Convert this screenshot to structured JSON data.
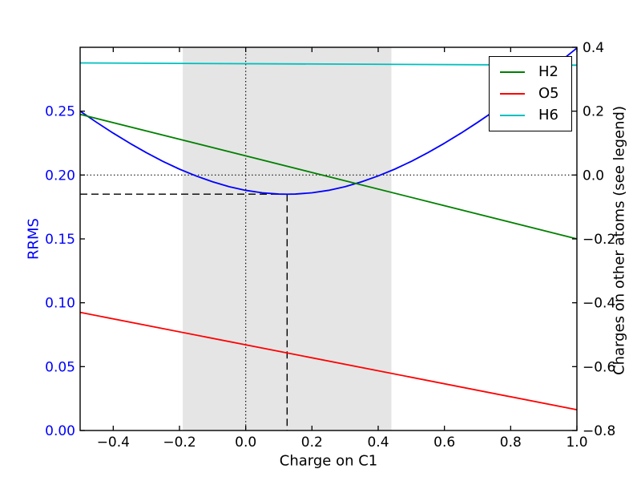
{
  "figure": {
    "background": "#ffffff",
    "plot_border_color": "#000000"
  },
  "chart_data": {
    "type": "line",
    "title": "",
    "xlabel": "Charge on C1",
    "ylabel_left": "RRMS",
    "ylabel_right": "Charges on other atoms (see legend)",
    "xlim": [
      -0.5,
      1.0
    ],
    "ylim_left": [
      0.0,
      0.3
    ],
    "ylim_right": [
      -0.8,
      0.4
    ],
    "grid": false,
    "x_ticks": {
      "values": [
        -0.4,
        -0.2,
        0.0,
        0.2,
        0.4,
        0.6,
        0.8,
        1.0
      ],
      "labels": [
        "−0.4",
        "−0.2",
        "0.0",
        "0.2",
        "0.4",
        "0.6",
        "0.8",
        "1.0"
      ],
      "color": "#000000"
    },
    "left_ticks": {
      "values": [
        0.0,
        0.05,
        0.1,
        0.15,
        0.2,
        0.25
      ],
      "labels": [
        "0.00",
        "0.05",
        "0.10",
        "0.15",
        "0.20",
        "0.25"
      ],
      "color": "#0000ff"
    },
    "right_ticks": {
      "values": [
        0.4,
        0.2,
        0.0,
        -0.2,
        -0.4,
        -0.6,
        -0.8
      ],
      "labels": [
        "0.4",
        "0.2",
        "0.0",
        "−0.2",
        "−0.4",
        "−0.6",
        "−0.8"
      ],
      "color": "#000000"
    },
    "series": [
      {
        "name": "RRMS",
        "axis": "left",
        "color": "#0000ff",
        "in_legend": false,
        "x": [
          -0.5,
          -0.45,
          -0.4,
          -0.35,
          -0.3,
          -0.25,
          -0.2,
          -0.15,
          -0.1,
          -0.05,
          0.0,
          0.05,
          0.1,
          0.125,
          0.15,
          0.2,
          0.25,
          0.3,
          0.35,
          0.4,
          0.45,
          0.5,
          0.55,
          0.6,
          0.65,
          0.7,
          0.75,
          0.8,
          0.85,
          0.9,
          0.95,
          1.0
        ],
        "y": [
          0.25,
          0.2412,
          0.2328,
          0.2249,
          0.2175,
          0.2107,
          0.2046,
          0.1993,
          0.1947,
          0.1909,
          0.188,
          0.1861,
          0.1851,
          0.185,
          0.1851,
          0.1861,
          0.188,
          0.1909,
          0.1947,
          0.1993,
          0.2046,
          0.2107,
          0.2175,
          0.2249,
          0.2328,
          0.2412,
          0.25,
          0.2593,
          0.2689,
          0.2788,
          0.289,
          0.2994
        ]
      },
      {
        "name": "H2",
        "axis": "right",
        "color": "#008000",
        "in_legend": true,
        "x": [
          -0.5,
          1.0
        ],
        "y": [
          0.19,
          -0.2
        ]
      },
      {
        "name": "O5",
        "axis": "right",
        "color": "#ff0000",
        "in_legend": true,
        "x": [
          -0.5,
          1.0
        ],
        "y": [
          -0.43,
          -0.735
        ]
      },
      {
        "name": "H6",
        "axis": "right",
        "color": "#00bfbf",
        "in_legend": true,
        "x": [
          -0.5,
          1.0
        ],
        "y": [
          0.351,
          0.344
        ]
      }
    ],
    "legend": {
      "position": "upper right",
      "entries": [
        "H2",
        "O5",
        "H6"
      ]
    },
    "annotations": {
      "shaded_region": {
        "x0": -0.19,
        "x1": 0.44,
        "color": "#e5e5e5"
      },
      "dotted_vline_x": 0.0,
      "dotted_hline_charge": 0.0,
      "dashed_hline_rrms": 0.185,
      "dashed_vline_x": 0.125,
      "rrms_minimum": {
        "charge_on_c1": 0.125,
        "rrms": 0.185
      },
      "line_color": "#000000"
    }
  }
}
